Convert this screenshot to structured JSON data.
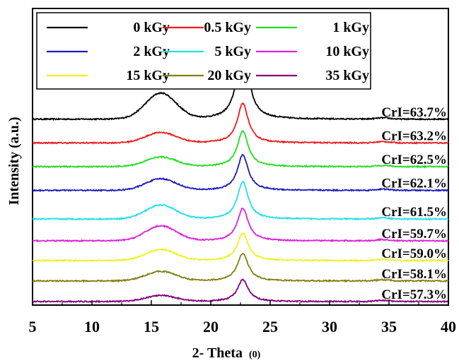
{
  "chart_data": {
    "type": "line",
    "xlabel": "2- Theta",
    "xlabel_unit": "(0)",
    "ylabel": "Intensity (a.u.)",
    "xlim": [
      5,
      40
    ],
    "xticks": [
      "5",
      "10",
      "15",
      "20",
      "25",
      "30",
      "35",
      "40"
    ],
    "yticks_labeled": false,
    "grid": false,
    "legend": {
      "placement": "top",
      "columns": 3
    },
    "peaks": [
      {
        "center": 15.8,
        "width": 1.8
      },
      {
        "center": 22.7,
        "width": 0.55
      },
      {
        "center": 34.5,
        "width": 0.8
      }
    ],
    "series": [
      {
        "name": "0 kGy",
        "color": "#000000",
        "baseline": 0.84,
        "peak_15": 0.13,
        "peak_22": 0.4,
        "crystallinity_index": "CrI=63.7%"
      },
      {
        "name": "0.5 kGy",
        "color": "#ee1c1c",
        "baseline": 0.72,
        "peak_15": 0.052,
        "peak_22": 0.2,
        "crystallinity_index": "CrI=63.2%"
      },
      {
        "name": "1 kGy",
        "color": "#22dd22",
        "baseline": 0.6,
        "peak_15": 0.048,
        "peak_22": 0.18,
        "crystallinity_index": "CrI=62.5%"
      },
      {
        "name": "2 kGy",
        "color": "#1c1cbb",
        "baseline": 0.48,
        "peak_15": 0.058,
        "peak_22": 0.18,
        "crystallinity_index": "CrI=62.1%"
      },
      {
        "name": "5 kGy",
        "color": "#22e0e8",
        "baseline": 0.335,
        "peak_15": 0.07,
        "peak_22": 0.19,
        "crystallinity_index": "CrI=61.5%"
      },
      {
        "name": "10 kGy",
        "color": "#dd22dd",
        "baseline": 0.225,
        "peak_15": 0.075,
        "peak_22": 0.165,
        "crystallinity_index": "CrI=59.7%"
      },
      {
        "name": "15 kGy",
        "color": "#f0f020",
        "baseline": 0.125,
        "peak_15": 0.055,
        "peak_22": 0.14,
        "crystallinity_index": "CrI=59.0%"
      },
      {
        "name": "20 kGy",
        "color": "#808010",
        "baseline": 0.022,
        "peak_15": 0.048,
        "peak_22": 0.14,
        "crystallinity_index": "CrI=58.1%"
      },
      {
        "name": "35 kGy",
        "color": "#800080",
        "baseline": -0.082,
        "peak_15": 0.03,
        "peak_22": 0.11,
        "crystallinity_index": "CrI=57.3%"
      }
    ]
  }
}
